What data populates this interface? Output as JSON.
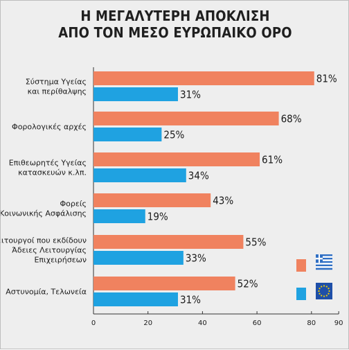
{
  "chart_data": {
    "type": "bar",
    "orientation": "horizontal",
    "title": [
      "Η ΜΕΓΑΛΥΤΕΡΗ ΑΠΟΚΛΙΣΗ",
      "ΑΠΟ ΤΟΝ ΜΕΣΟ ΕΥΡΩΠΑΙΚΟ ΟΡΟ"
    ],
    "categories": [
      [
        "Σύστημα Υγείας",
        "και περίθαλψης"
      ],
      [
        "Φορολογικές αρχές"
      ],
      [
        "Επιθεωρητές Υγείας",
        "κατασκευών κ.λπ."
      ],
      [
        "Φορείς",
        "Κοινωνικής Ασφάλισης"
      ],
      [
        "Λειτουργοί που εκδίδουν",
        "Άδειες Λειτουργίας",
        "Επιχειρήσεων"
      ],
      [
        "Αστυνομία, Τελωνεία"
      ]
    ],
    "series": [
      {
        "legend_icon": "greece-flag-icon",
        "color": "#f0825f",
        "values": [
          81,
          68,
          61,
          43,
          55,
          52
        ]
      },
      {
        "legend_icon": "eu-flag-icon",
        "color": "#1fa2e1",
        "values": [
          31,
          25,
          34,
          19,
          33,
          31
        ]
      }
    ],
    "value_suffix": "%",
    "xlim": [
      0,
      90
    ],
    "xticks": [
      0,
      20,
      40,
      60,
      80,
      90
    ],
    "legend_placement": "bottom-right",
    "grid": false
  }
}
